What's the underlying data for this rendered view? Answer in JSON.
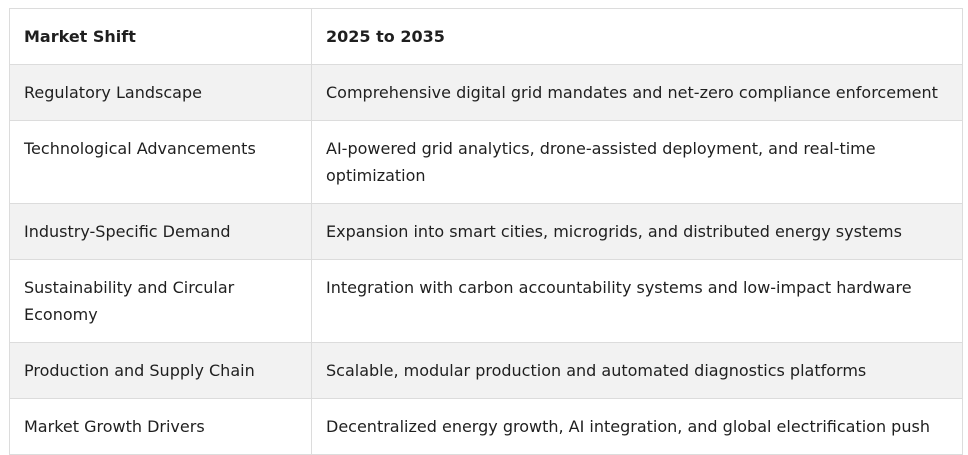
{
  "table": {
    "headers": [
      "Market Shift",
      "2025 to 2035"
    ],
    "rows": [
      [
        "Regulatory Landscape",
        "Comprehensive digital grid mandates and net-zero compliance enforcement"
      ],
      [
        "Technological Advancements",
        "AI-powered grid analytics, drone-assisted deployment, and real-time optimization"
      ],
      [
        "Industry-Specific Demand",
        "Expansion into smart cities, microgrids, and distributed energy systems"
      ],
      [
        "Sustainability and Circular Economy",
        "Integration with carbon accountability systems and low-impact hardware"
      ],
      [
        "Production and Supply Chain",
        "Scalable, modular production and automated diagnostics platforms"
      ],
      [
        "Market Growth Drivers",
        "Decentralized energy growth, AI integration, and global electrification push"
      ]
    ]
  }
}
